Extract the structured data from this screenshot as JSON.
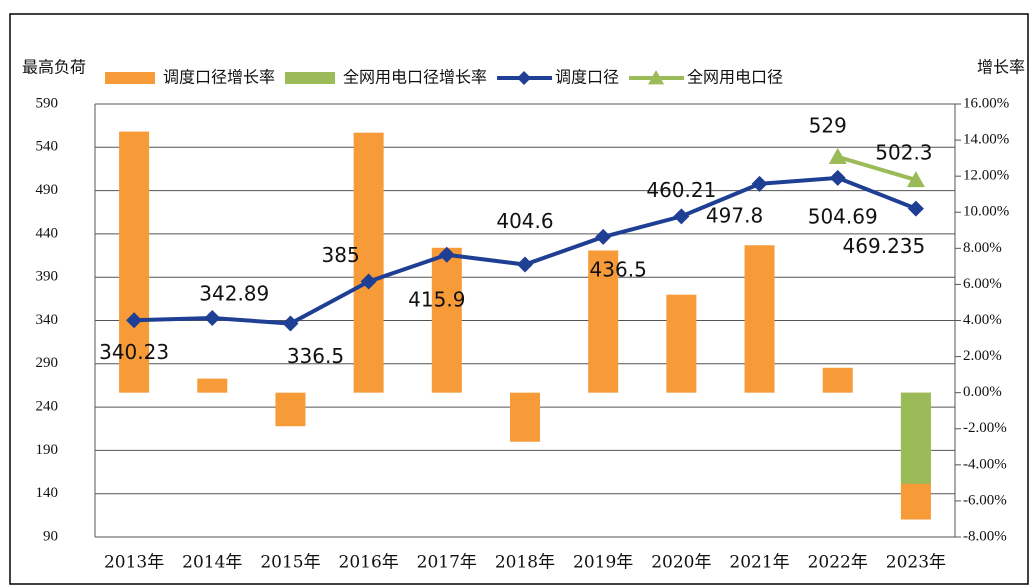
{
  "chart_data": {
    "type": "bar",
    "y_axis_label": "最高负荷",
    "y2_axis_label": "增长率",
    "categories": [
      "2013年",
      "2014年",
      "2015年",
      "2016年",
      "2017年",
      "2018年",
      "2019年",
      "2020年",
      "2021年",
      "2022年",
      "2023年"
    ],
    "series": [
      {
        "name": "调度口径增长率",
        "type": "bar",
        "axis": "y2",
        "color": "#f79a38",
        "values": [
          14.47,
          0.78,
          -1.86,
          14.41,
          8.03,
          -2.72,
          7.88,
          5.43,
          8.17,
          1.38,
          -7.03
        ]
      },
      {
        "name": "全网用电口径增长率",
        "type": "bar",
        "axis": "y2",
        "color": "#9bbb59",
        "values": [
          null,
          null,
          null,
          null,
          null,
          null,
          null,
          null,
          null,
          null,
          -5.05
        ]
      },
      {
        "name": "调度口径",
        "type": "line",
        "marker": "diamond",
        "color": "#1f3f94",
        "values": [
          340.23,
          342.89,
          336.5,
          385,
          415.9,
          404.6,
          436.5,
          460.21,
          497.8,
          504.69,
          469.235
        ]
      },
      {
        "name": "全网用电口径",
        "type": "line",
        "marker": "triangle",
        "color": "#9bbb59",
        "values": [
          null,
          null,
          null,
          null,
          null,
          null,
          null,
          null,
          null,
          529,
          502.3
        ]
      }
    ],
    "ylim": [
      90,
      590
    ],
    "yticks": [
      90,
      140,
      190,
      240,
      290,
      340,
      390,
      440,
      490,
      540,
      590
    ],
    "y2lim": [
      -8,
      16
    ],
    "y2ticks": [
      {
        "value": -8,
        "label": "-8.00%"
      },
      {
        "value": -6,
        "label": "-6.00%"
      },
      {
        "value": -4,
        "label": "-4.00%"
      },
      {
        "value": -2,
        "label": "-2.00%"
      },
      {
        "value": 0,
        "label": "0.00%"
      },
      {
        "value": 2,
        "label": "2.00%"
      },
      {
        "value": 4,
        "label": "4.00%"
      },
      {
        "value": 6,
        "label": "6.00%"
      },
      {
        "value": 8,
        "label": "8.00%"
      },
      {
        "value": 10,
        "label": "10.00%"
      },
      {
        "value": 12,
        "label": "12.00%"
      },
      {
        "value": 14,
        "label": "14.00%"
      },
      {
        "value": 16,
        "label": "16.00%"
      }
    ],
    "grid": true
  }
}
